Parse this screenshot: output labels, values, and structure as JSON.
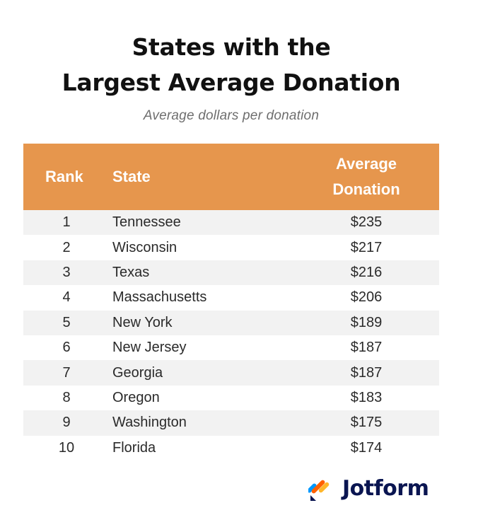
{
  "title_line1": "States with the",
  "title_line2": "Largest Average Donation",
  "subtitle": "Average dollars per donation",
  "table": {
    "headers": {
      "rank": "Rank",
      "state": "State",
      "avg_line1": "Average",
      "avg_line2": "Donation"
    },
    "rows": [
      {
        "rank": "1",
        "state": "Tennessee",
        "value": "$235"
      },
      {
        "rank": "2",
        "state": "Wisconsin",
        "value": "$217"
      },
      {
        "rank": "3",
        "state": "Texas",
        "value": "$216"
      },
      {
        "rank": "4",
        "state": "Massachusetts",
        "value": "$206"
      },
      {
        "rank": "5",
        "state": "New York",
        "value": "$189"
      },
      {
        "rank": "6",
        "state": "New Jersey",
        "value": "$187"
      },
      {
        "rank": "7",
        "state": "Georgia",
        "value": "$187"
      },
      {
        "rank": "8",
        "state": "Oregon",
        "value": "$183"
      },
      {
        "rank": "9",
        "state": "Washington",
        "value": "$175"
      },
      {
        "rank": "10",
        "state": "Florida",
        "value": "$174"
      }
    ]
  },
  "chart_data": {
    "type": "table",
    "title": "States with the Largest Average Donation",
    "subtitle": "Average dollars per donation",
    "columns": [
      "Rank",
      "State",
      "Average Donation"
    ],
    "categories": [
      "Tennessee",
      "Wisconsin",
      "Texas",
      "Massachusetts",
      "New York",
      "New Jersey",
      "Georgia",
      "Oregon",
      "Washington",
      "Florida"
    ],
    "values": [
      235,
      217,
      216,
      206,
      189,
      187,
      187,
      183,
      175,
      174
    ]
  },
  "brand": {
    "name": "Jotform",
    "icon": "jotform-logo-icon",
    "header_color": "#e6964d",
    "text_color": "#0a1551",
    "logo_colors": [
      "#ff6100",
      "#0099ff",
      "#ffb629",
      "#0a1551"
    ]
  }
}
